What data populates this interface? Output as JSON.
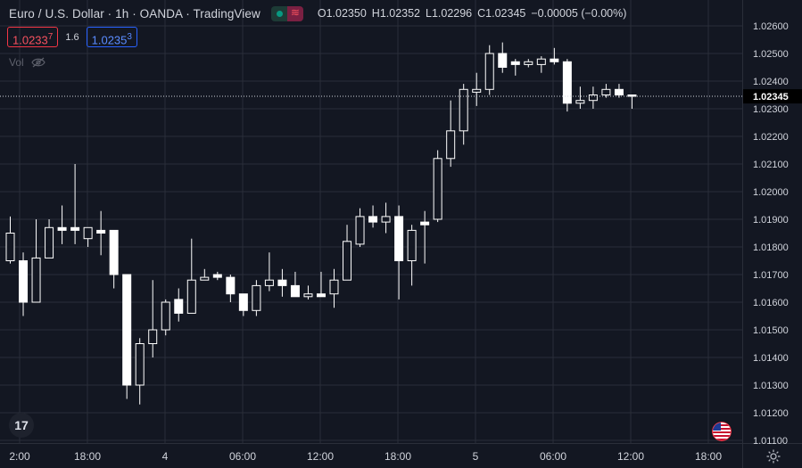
{
  "header": {
    "title": "Euro / U.S. Dollar · 1h · OANDA · TradingView",
    "ohlc": [
      {
        "key": "O",
        "value": "1.02350"
      },
      {
        "key": "H",
        "value": "1.02352"
      },
      {
        "key": "L",
        "value": "1.02296"
      },
      {
        "key": "C",
        "value": "1.02345"
      },
      {
        "key": "",
        "value": "−0.00005 (−0.00%)"
      }
    ],
    "market_status_icon": "closed-market-icon"
  },
  "trade": {
    "sell_price": "1.0233",
    "sell_sup": "7",
    "spread": "1.6",
    "buy_price": "1.0235",
    "buy_sup": "3"
  },
  "volume": {
    "label": "Vol",
    "icon": "eye-off-icon"
  },
  "colors": {
    "background": "#131722",
    "grid": "#2a2e39",
    "up": "#ffffff",
    "down": "#ffffff",
    "price_line": "#d1d4dc",
    "text": "#d1d4dc",
    "sell": "#f23645",
    "buy": "#2962ff"
  },
  "chart_data": {
    "type": "candlestick",
    "title": "Euro / U.S. Dollar",
    "interval": "1h",
    "x_labels": [
      "2:00",
      "18:00",
      "4",
      "06:00",
      "12:00",
      "18:00",
      "5",
      "06:00",
      "12:00",
      "18:00"
    ],
    "y_ticks": [
      "1.02600",
      "1.02500",
      "1.02400",
      "1.02300",
      "1.02200",
      "1.02100",
      "1.02000",
      "1.01900",
      "1.01800",
      "1.01700",
      "1.01600",
      "1.01500",
      "1.01400",
      "1.01300",
      "1.01200",
      "1.01100"
    ],
    "ylim": [
      1.0109,
      1.0265
    ],
    "last_price": "1.02345",
    "candles": [
      {
        "o": 1.0175,
        "h": 1.0191,
        "l": 1.0174,
        "c": 1.0185
      },
      {
        "o": 1.0175,
        "h": 1.0178,
        "l": 1.0155,
        "c": 1.016
      },
      {
        "o": 1.016,
        "h": 1.019,
        "l": 1.016,
        "c": 1.0176
      },
      {
        "o": 1.0176,
        "h": 1.019,
        "l": 1.0176,
        "c": 1.0187
      },
      {
        "o": 1.0187,
        "h": 1.0195,
        "l": 1.0181,
        "c": 1.0186
      },
      {
        "o": 1.0187,
        "h": 1.021,
        "l": 1.0181,
        "c": 1.0186
      },
      {
        "o": 1.0183,
        "h": 1.0187,
        "l": 1.018,
        "c": 1.0187
      },
      {
        "o": 1.0186,
        "h": 1.0193,
        "l": 1.0177,
        "c": 1.0185
      },
      {
        "o": 1.0186,
        "h": 1.0186,
        "l": 1.0165,
        "c": 1.017
      },
      {
        "o": 1.017,
        "h": 1.017,
        "l": 1.0125,
        "c": 1.013
      },
      {
        "o": 1.013,
        "h": 1.0147,
        "l": 1.0123,
        "c": 1.0145
      },
      {
        "o": 1.0145,
        "h": 1.0168,
        "l": 1.014,
        "c": 1.015
      },
      {
        "o": 1.015,
        "h": 1.0161,
        "l": 1.0148,
        "c": 1.016
      },
      {
        "o": 1.0161,
        "h": 1.0165,
        "l": 1.0153,
        "c": 1.0156
      },
      {
        "o": 1.0156,
        "h": 1.0183,
        "l": 1.0156,
        "c": 1.0168
      },
      {
        "o": 1.0168,
        "h": 1.0172,
        "l": 1.0168,
        "c": 1.0169
      },
      {
        "o": 1.017,
        "h": 1.0171,
        "l": 1.0168,
        "c": 1.0169
      },
      {
        "o": 1.0169,
        "h": 1.017,
        "l": 1.016,
        "c": 1.0163
      },
      {
        "o": 1.0163,
        "h": 1.0163,
        "l": 1.0155,
        "c": 1.0157
      },
      {
        "o": 1.0157,
        "h": 1.0168,
        "l": 1.0155,
        "c": 1.0166
      },
      {
        "o": 1.0166,
        "h": 1.0178,
        "l": 1.0164,
        "c": 1.0168
      },
      {
        "o": 1.0168,
        "h": 1.0172,
        "l": 1.0162,
        "c": 1.0166
      },
      {
        "o": 1.0166,
        "h": 1.0171,
        "l": 1.0162,
        "c": 1.0162
      },
      {
        "o": 1.0162,
        "h": 1.0166,
        "l": 1.0161,
        "c": 1.0163
      },
      {
        "o": 1.0163,
        "h": 1.0171,
        "l": 1.0162,
        "c": 1.0162
      },
      {
        "o": 1.0163,
        "h": 1.0172,
        "l": 1.0158,
        "c": 1.0168
      },
      {
        "o": 1.0168,
        "h": 1.0188,
        "l": 1.0168,
        "c": 1.0182
      },
      {
        "o": 1.0181,
        "h": 1.0194,
        "l": 1.018,
        "c": 1.0191
      },
      {
        "o": 1.0191,
        "h": 1.0195,
        "l": 1.0187,
        "c": 1.0189
      },
      {
        "o": 1.0189,
        "h": 1.0196,
        "l": 1.0185,
        "c": 1.0191
      },
      {
        "o": 1.0191,
        "h": 1.0195,
        "l": 1.0161,
        "c": 1.0175
      },
      {
        "o": 1.0175,
        "h": 1.0188,
        "l": 1.0166,
        "c": 1.0186
      },
      {
        "o": 1.0189,
        "h": 1.0193,
        "l": 1.0174,
        "c": 1.0188
      },
      {
        "o": 1.019,
        "h": 1.0215,
        "l": 1.0189,
        "c": 1.0212
      },
      {
        "o": 1.0212,
        "h": 1.0233,
        "l": 1.0209,
        "c": 1.0222
      },
      {
        "o": 1.0222,
        "h": 1.0239,
        "l": 1.0217,
        "c": 1.0237
      },
      {
        "o": 1.0236,
        "h": 1.0243,
        "l": 1.0231,
        "c": 1.0237
      },
      {
        "o": 1.0237,
        "h": 1.0253,
        "l": 1.0235,
        "c": 1.025
      },
      {
        "o": 1.025,
        "h": 1.0254,
        "l": 1.0243,
        "c": 1.0245
      },
      {
        "o": 1.0247,
        "h": 1.0248,
        "l": 1.0242,
        "c": 1.0246
      },
      {
        "o": 1.0246,
        "h": 1.0248,
        "l": 1.0245,
        "c": 1.0247
      },
      {
        "o": 1.0246,
        "h": 1.0249,
        "l": 1.0243,
        "c": 1.0248
      },
      {
        "o": 1.0248,
        "h": 1.0252,
        "l": 1.0246,
        "c": 1.0247
      },
      {
        "o": 1.0247,
        "h": 1.0248,
        "l": 1.0229,
        "c": 1.0232
      },
      {
        "o": 1.0232,
        "h": 1.0238,
        "l": 1.023,
        "c": 1.0233
      },
      {
        "o": 1.0233,
        "h": 1.0238,
        "l": 1.023,
        "c": 1.0235
      },
      {
        "o": 1.0235,
        "h": 1.0239,
        "l": 1.0234,
        "c": 1.0237
      },
      {
        "o": 1.0237,
        "h": 1.0239,
        "l": 1.0234,
        "c": 1.0235
      },
      {
        "o": 1.0235,
        "h": 1.0235,
        "l": 1.023,
        "c": 1.02345
      }
    ]
  }
}
